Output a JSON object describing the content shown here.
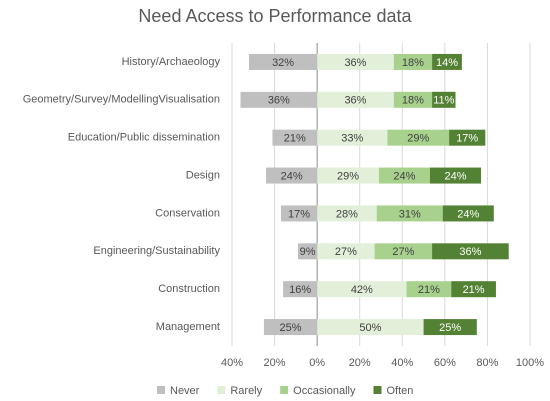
{
  "chart_data": {
    "type": "diverging_bar",
    "title": "Need Access to Performance data",
    "categories": [
      "History/Archaeology",
      "Geometry/Survey/ModellingVisualisation",
      "Education/Public dissemination",
      "Design",
      "Conservation",
      "Engineering/Sustainability",
      "Construction",
      "Management"
    ],
    "series": [
      {
        "name": "Never",
        "color": "#bfbfbf",
        "values": [
          -32,
          -36,
          -21,
          -24,
          -17,
          -9,
          -16,
          -25
        ],
        "value_labels": [
          "32%",
          "36%",
          "21%",
          "24%",
          "17%",
          "9%",
          "16%",
          "25%"
        ]
      },
      {
        "name": "Rarely",
        "color": "#e2f0d9",
        "values": [
          36,
          36,
          33,
          29,
          28,
          27,
          42,
          50
        ],
        "value_labels": [
          "36%",
          "36%",
          "33%",
          "29%",
          "28%",
          "27%",
          "42%",
          "50%"
        ]
      },
      {
        "name": "Occasionally",
        "color": "#a9d18e",
        "values": [
          18,
          18,
          29,
          24,
          31,
          27,
          21,
          null
        ],
        "value_labels": [
          "18%",
          "18%",
          "29%",
          "24%",
          "31%",
          "27%",
          "21%",
          null
        ]
      },
      {
        "name": "Often",
        "color": "#548235",
        "values": [
          14,
          11,
          17,
          24,
          24,
          36,
          21,
          25
        ],
        "value_labels": [
          "14%",
          "11%",
          "17%",
          "24%",
          "24%",
          "36%",
          "21%",
          "25%"
        ]
      }
    ],
    "xlim": [
      -40,
      100
    ],
    "xticks": [
      {
        "value": -40,
        "label": "40%"
      },
      {
        "value": -20,
        "label": "20%"
      },
      {
        "value": 0,
        "label": "0%"
      },
      {
        "value": 20,
        "label": "20%"
      },
      {
        "value": 40,
        "label": "40%"
      },
      {
        "value": 60,
        "label": "60%"
      },
      {
        "value": 80,
        "label": "80%"
      },
      {
        "value": 100,
        "label": "100%"
      }
    ],
    "grid": true,
    "legend": "bottom"
  }
}
